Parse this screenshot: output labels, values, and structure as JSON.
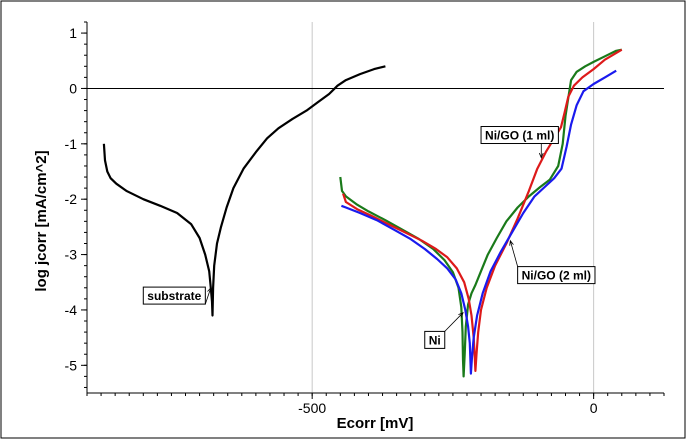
{
  "chart_data": {
    "type": "line",
    "xlabel": "Ecorr [mV]",
    "ylabel": "log jcorr [mA/cm^2]",
    "xlim": [
      -900,
      125
    ],
    "ylim": [
      -5.5,
      1.2
    ],
    "xticks": [
      {
        "value": -500,
        "label": "-500"
      },
      {
        "value": 0,
        "label": "0"
      }
    ],
    "yticks": [
      {
        "value": 1,
        "label": "1"
      },
      {
        "value": 0,
        "label": "0"
      },
      {
        "value": -1,
        "label": "-1"
      },
      {
        "value": -2,
        "label": "-2"
      },
      {
        "value": -3,
        "label": "-3"
      },
      {
        "value": -4,
        "label": "-4"
      },
      {
        "value": -5,
        "label": "-5"
      }
    ],
    "minor_x_step": 25,
    "minor_y_step": 0.2,
    "gridlines": {
      "x": [
        -500,
        0
      ],
      "y": [
        0
      ]
    },
    "series": [
      {
        "name": "substrate",
        "color": "#000000",
        "points": [
          [
            -870,
            -1.0
          ],
          [
            -868,
            -1.3
          ],
          [
            -864,
            -1.5
          ],
          [
            -858,
            -1.62
          ],
          [
            -848,
            -1.72
          ],
          [
            -830,
            -1.85
          ],
          [
            -800,
            -2.0
          ],
          [
            -770,
            -2.12
          ],
          [
            -740,
            -2.25
          ],
          [
            -715,
            -2.45
          ],
          [
            -700,
            -2.7
          ],
          [
            -690,
            -3.0
          ],
          [
            -683,
            -3.3
          ],
          [
            -680,
            -3.6
          ],
          [
            -678,
            -3.85
          ],
          [
            -677,
            -4.1
          ],
          [
            -676,
            -3.6
          ],
          [
            -674,
            -3.2
          ],
          [
            -669,
            -2.8
          ],
          [
            -662,
            -2.5
          ],
          [
            -652,
            -2.15
          ],
          [
            -640,
            -1.8
          ],
          [
            -622,
            -1.45
          ],
          [
            -600,
            -1.15
          ],
          [
            -580,
            -0.9
          ],
          [
            -560,
            -0.72
          ],
          [
            -535,
            -0.55
          ],
          [
            -510,
            -0.4
          ],
          [
            -490,
            -0.25
          ],
          [
            -470,
            -0.1
          ],
          [
            -455,
            0.05
          ],
          [
            -440,
            0.15
          ],
          [
            -415,
            0.26
          ],
          [
            -390,
            0.35
          ],
          [
            -370,
            0.4
          ]
        ]
      },
      {
        "name": "Ni",
        "color": "#1a7a1a",
        "points": [
          [
            -450,
            -1.6
          ],
          [
            -447,
            -1.85
          ],
          [
            -440,
            -1.95
          ],
          [
            -420,
            -2.1
          ],
          [
            -400,
            -2.22
          ],
          [
            -370,
            -2.38
          ],
          [
            -340,
            -2.55
          ],
          [
            -310,
            -2.72
          ],
          [
            -285,
            -2.9
          ],
          [
            -265,
            -3.1
          ],
          [
            -250,
            -3.32
          ],
          [
            -240,
            -3.6
          ],
          [
            -235,
            -3.95
          ],
          [
            -233,
            -4.4
          ],
          [
            -232,
            -4.9
          ],
          [
            -231,
            -5.2
          ],
          [
            -229,
            -4.8
          ],
          [
            -227,
            -4.3
          ],
          [
            -223,
            -3.9
          ],
          [
            -217,
            -3.7
          ],
          [
            -210,
            -3.55
          ],
          [
            -200,
            -3.3
          ],
          [
            -188,
            -3.0
          ],
          [
            -172,
            -2.7
          ],
          [
            -155,
            -2.4
          ],
          [
            -135,
            -2.15
          ],
          [
            -115,
            -1.95
          ],
          [
            -95,
            -1.78
          ],
          [
            -78,
            -1.65
          ],
          [
            -63,
            -1.4
          ],
          [
            -55,
            -1.0
          ],
          [
            -50,
            -0.5
          ],
          [
            -44,
            -0.1
          ],
          [
            -40,
            0.15
          ],
          [
            -30,
            0.3
          ],
          [
            -15,
            0.4
          ],
          [
            0,
            0.48
          ],
          [
            20,
            0.58
          ],
          [
            40,
            0.68
          ],
          [
            50,
            0.7
          ]
        ]
      },
      {
        "name": "Ni/GO (1 ml)",
        "color": "#dd1a1a",
        "points": [
          [
            -445,
            -1.9
          ],
          [
            -440,
            -2.05
          ],
          [
            -420,
            -2.18
          ],
          [
            -395,
            -2.3
          ],
          [
            -365,
            -2.45
          ],
          [
            -335,
            -2.6
          ],
          [
            -305,
            -2.75
          ],
          [
            -280,
            -2.9
          ],
          [
            -260,
            -3.05
          ],
          [
            -243,
            -3.25
          ],
          [
            -230,
            -3.5
          ],
          [
            -222,
            -3.8
          ],
          [
            -217,
            -4.1
          ],
          [
            -213,
            -4.5
          ],
          [
            -211,
            -4.9
          ],
          [
            -210,
            -5.1
          ],
          [
            -208,
            -4.8
          ],
          [
            -205,
            -4.4
          ],
          [
            -200,
            -4.0
          ],
          [
            -190,
            -3.6
          ],
          [
            -175,
            -3.2
          ],
          [
            -155,
            -2.8
          ],
          [
            -135,
            -2.35
          ],
          [
            -115,
            -1.85
          ],
          [
            -100,
            -1.45
          ],
          [
            -85,
            -1.15
          ],
          [
            -70,
            -0.9
          ],
          [
            -58,
            -0.7
          ],
          [
            -52,
            -0.45
          ],
          [
            -45,
            -0.15
          ],
          [
            -35,
            0.05
          ],
          [
            -20,
            0.2
          ],
          [
            0,
            0.35
          ],
          [
            20,
            0.52
          ],
          [
            50,
            0.7
          ]
        ]
      },
      {
        "name": "Ni/GO (2 ml)",
        "color": "#1a1aee",
        "points": [
          [
            -448,
            -2.12
          ],
          [
            -440,
            -2.15
          ],
          [
            -415,
            -2.25
          ],
          [
            -385,
            -2.38
          ],
          [
            -355,
            -2.55
          ],
          [
            -325,
            -2.72
          ],
          [
            -300,
            -2.9
          ],
          [
            -278,
            -3.08
          ],
          [
            -260,
            -3.25
          ],
          [
            -245,
            -3.45
          ],
          [
            -235,
            -3.7
          ],
          [
            -228,
            -4.0
          ],
          [
            -223,
            -4.3
          ],
          [
            -220,
            -4.6
          ],
          [
            -219,
            -4.9
          ],
          [
            -218,
            -5.15
          ],
          [
            -216,
            -4.85
          ],
          [
            -213,
            -4.5
          ],
          [
            -207,
            -4.1
          ],
          [
            -197,
            -3.7
          ],
          [
            -183,
            -3.3
          ],
          [
            -165,
            -2.95
          ],
          [
            -145,
            -2.6
          ],
          [
            -125,
            -2.25
          ],
          [
            -105,
            -1.95
          ],
          [
            -87,
            -1.78
          ],
          [
            -70,
            -1.62
          ],
          [
            -57,
            -1.45
          ],
          [
            -48,
            -1.05
          ],
          [
            -40,
            -0.65
          ],
          [
            -30,
            -0.3
          ],
          [
            -18,
            -0.05
          ],
          [
            0,
            0.08
          ],
          [
            20,
            0.2
          ],
          [
            40,
            0.32
          ]
        ]
      }
    ],
    "annotations": [
      {
        "text": "substrate",
        "x": -680,
        "y": -3.6,
        "box_x": -800,
        "box_y": -3.75
      },
      {
        "text": "Ni",
        "x": -232,
        "y": -4.05,
        "box_x": -300,
        "box_y": -4.55
      },
      {
        "text": "Ni/GO (1 ml)",
        "x": -93,
        "y": -1.25,
        "box_x": -200,
        "box_y": -0.85
      },
      {
        "text": "Ni/GO (2 ml)",
        "x": -148,
        "y": -2.75,
        "box_x": -135,
        "box_y": -3.38
      }
    ]
  }
}
